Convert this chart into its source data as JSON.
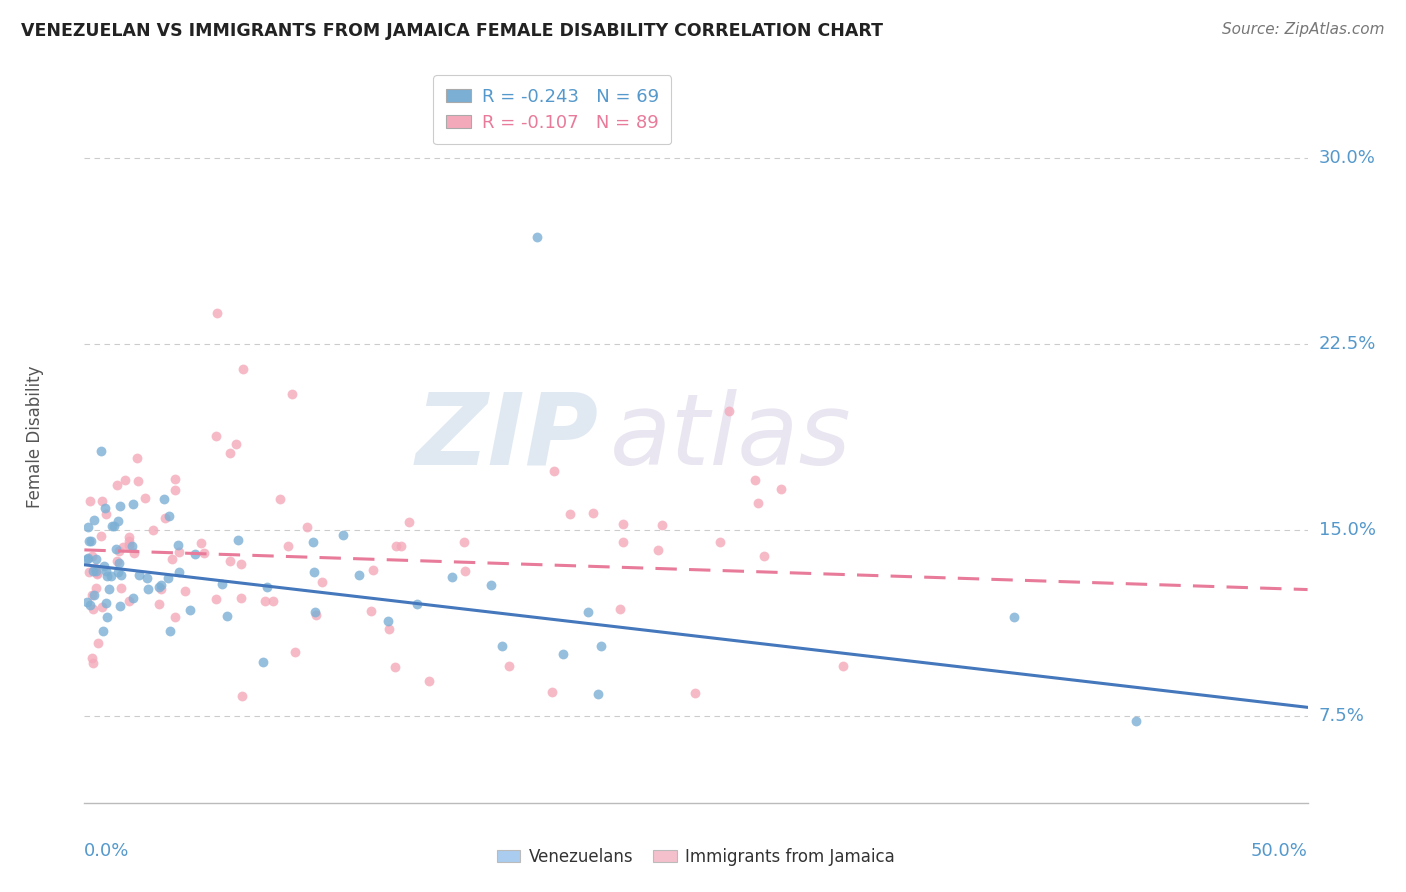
{
  "title": "VENEZUELAN VS IMMIGRANTS FROM JAMAICA FEMALE DISABILITY CORRELATION CHART",
  "source": "Source: ZipAtlas.com",
  "ylabel": "Female Disability",
  "ytick_labels": [
    "7.5%",
    "15.0%",
    "22.5%",
    "30.0%"
  ],
  "ytick_values": [
    0.075,
    0.15,
    0.225,
    0.3
  ],
  "xlim": [
    0.0,
    0.5
  ],
  "ylim": [
    0.04,
    0.335
  ],
  "legend_r1": "R = -0.243",
  "legend_n1": "N = 69",
  "legend_r2": "R = -0.107",
  "legend_n2": "N = 89",
  "watermark_zip": "ZIP",
  "watermark_atlas": "atlas",
  "blue_color": "#7BAFD4",
  "pink_color": "#F4A9BA",
  "blue_line": "#4477BB",
  "pink_line": "#E87B9A",
  "background_color": "#FFFFFF",
  "grid_color": "#CCCCCC",
  "title_color": "#222222",
  "label_color": "#5599CC",
  "right_label_color": "#5599CC"
}
